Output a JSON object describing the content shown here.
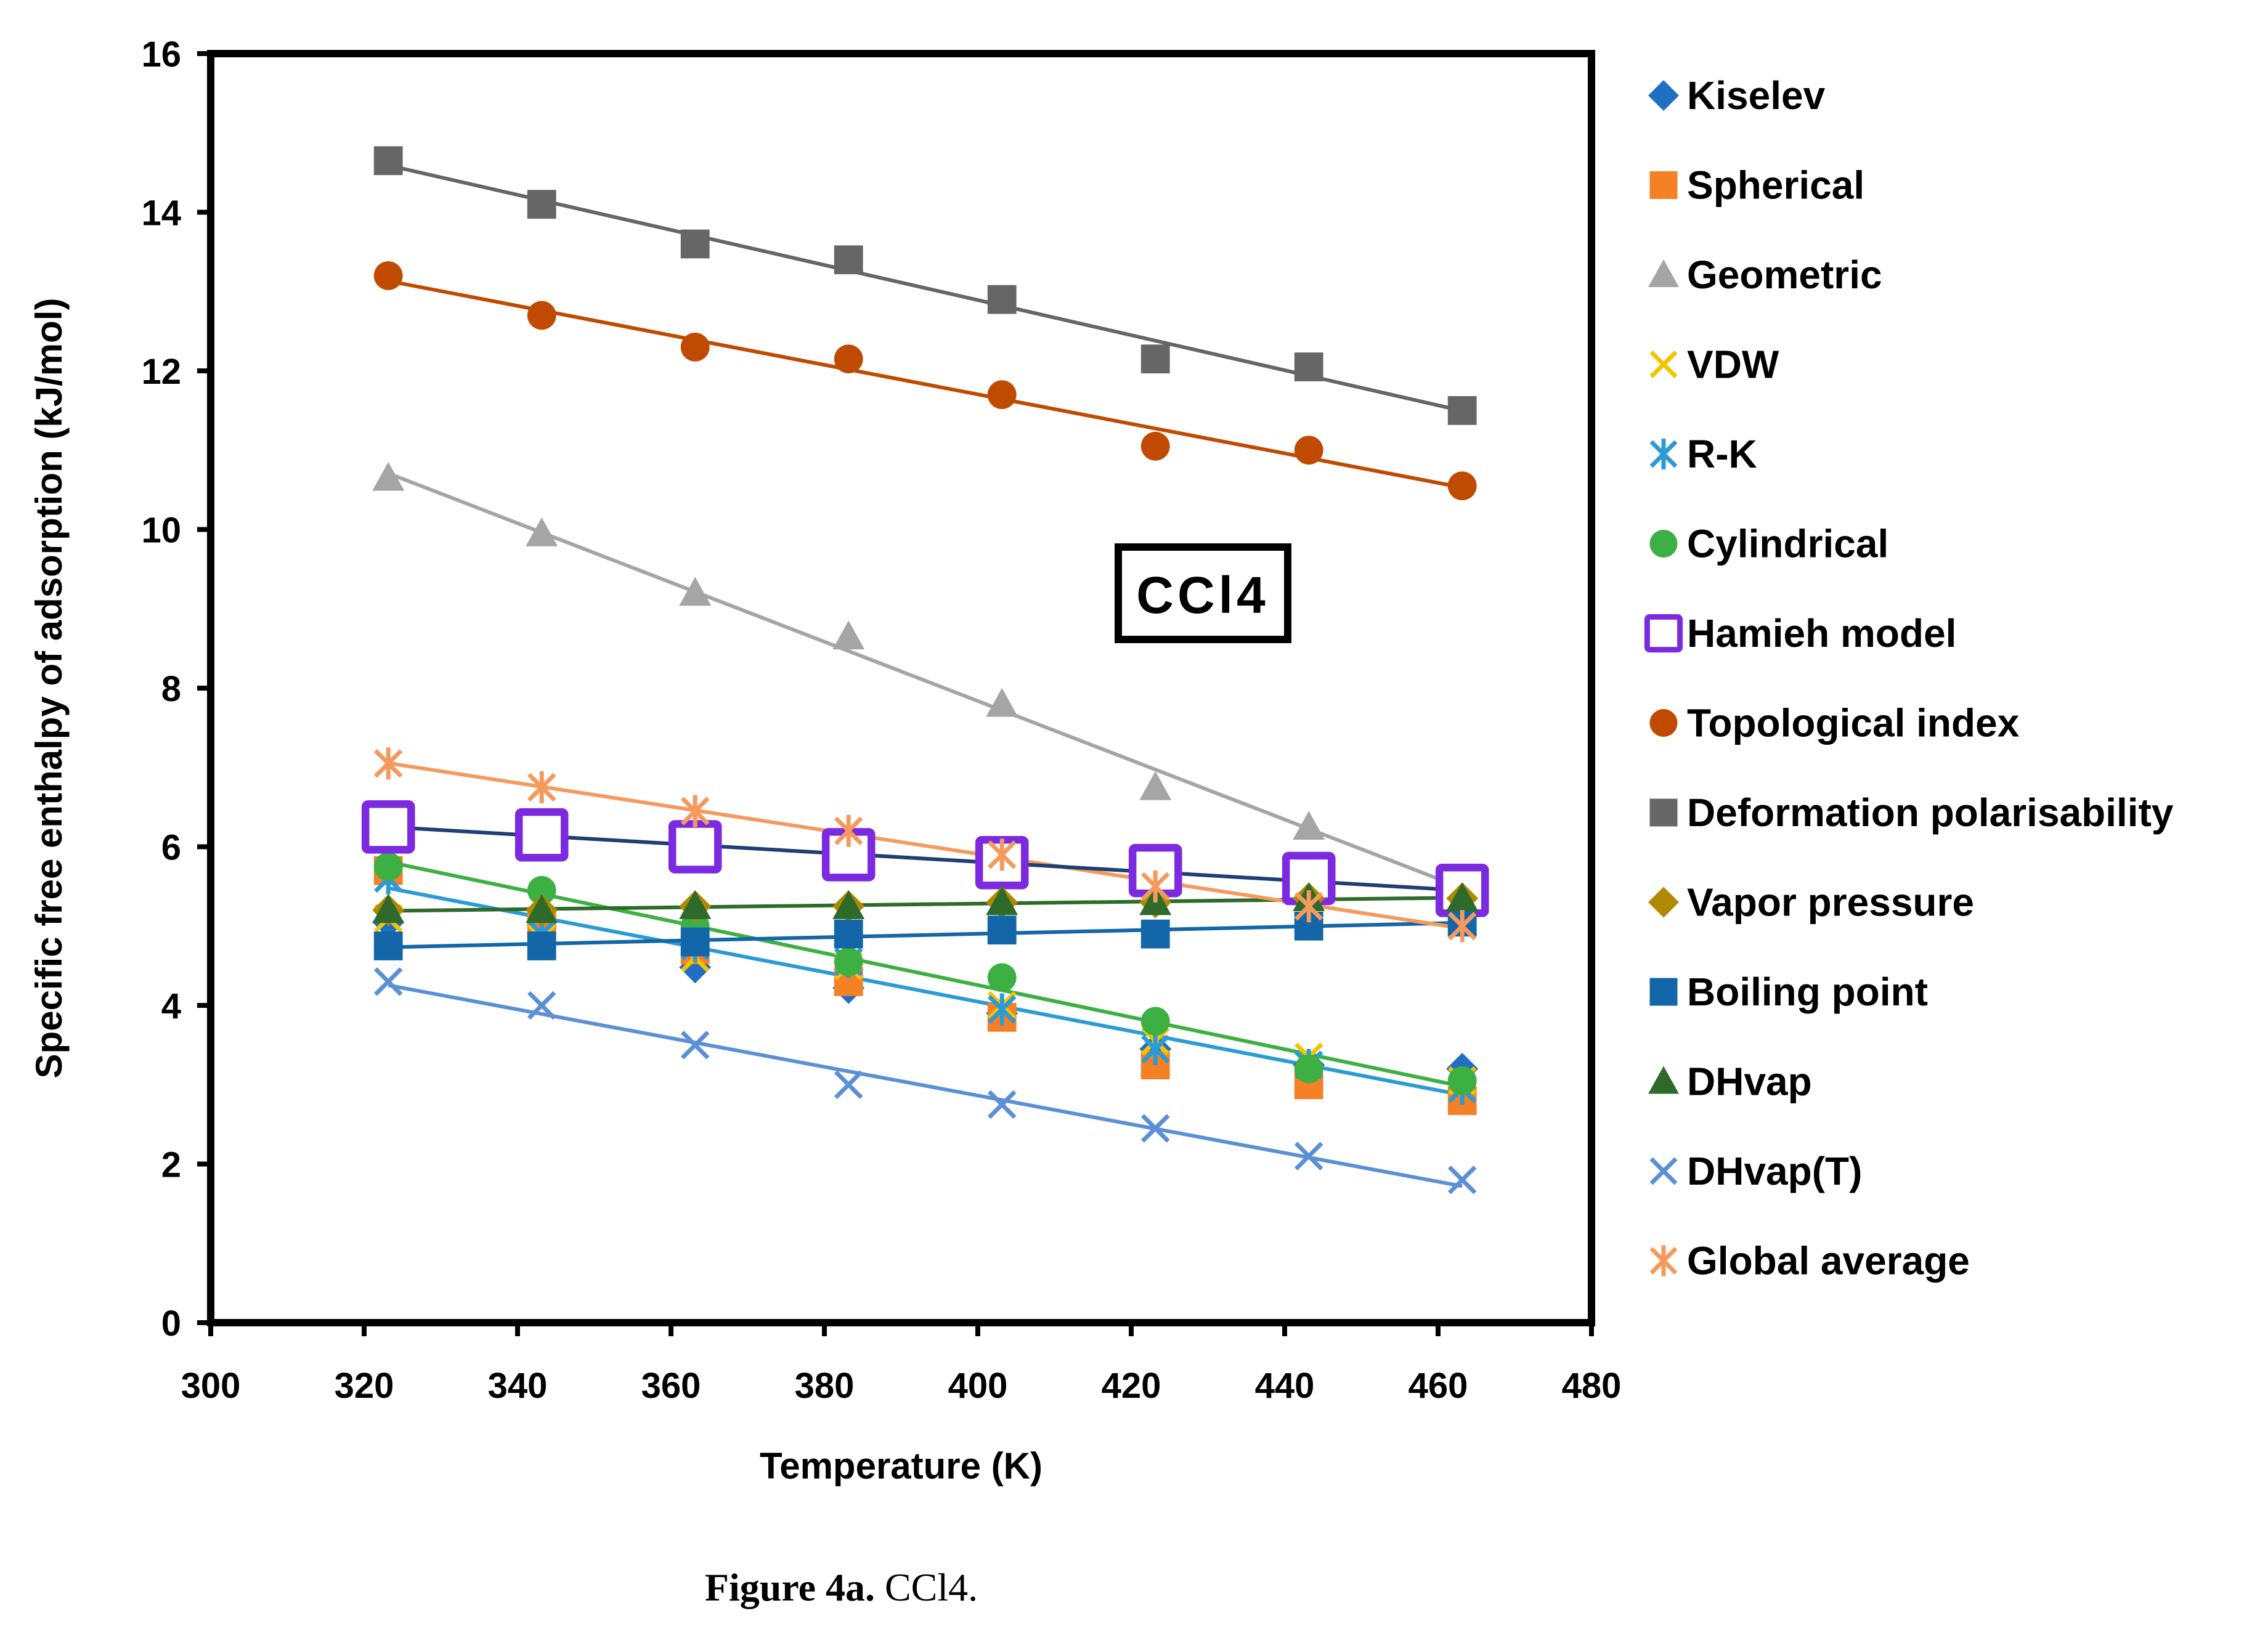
{
  "chart_data": {
    "type": "scatter",
    "title": "",
    "xlabel": "Temperature (K)",
    "ylabel": "Specific free enthalpy of adsorption (kJ/mol)",
    "xlim": [
      300,
      480
    ],
    "ylim": [
      0,
      16
    ],
    "xticks": [
      300,
      320,
      340,
      360,
      380,
      400,
      420,
      440,
      460,
      480
    ],
    "yticks": [
      0,
      2,
      4,
      6,
      8,
      10,
      12,
      14,
      16
    ],
    "annotation": "CCl4",
    "legend_position": "right",
    "x": [
      323.15,
      343.15,
      363.15,
      383.15,
      403.15,
      423.15,
      443.15,
      463.15
    ],
    "series": [
      {
        "name": "Kiselev",
        "marker": "diamond",
        "color": "#1f6fc4",
        "values": [
          5.05,
          4.78,
          4.48,
          4.22,
          3.9,
          3.45,
          3.25,
          3.2
        ],
        "trendline": false
      },
      {
        "name": "Spherical",
        "marker": "square",
        "color": "#f58025",
        "values": [
          5.7,
          5.0,
          4.7,
          4.3,
          3.85,
          3.25,
          3.0,
          2.8
        ],
        "trendline": false
      },
      {
        "name": "Geometric",
        "marker": "triangle",
        "color": "#a5a5a5",
        "values": [
          10.65,
          9.95,
          9.2,
          8.65,
          7.8,
          6.75,
          6.25,
          5.5
        ],
        "trendline": true
      },
      {
        "name": "VDW",
        "marker": "x",
        "color": "#f2c500",
        "values": [
          5.1,
          4.85,
          4.6,
          4.5,
          4.0,
          3.55,
          3.35,
          3.05
        ],
        "trendline": false
      },
      {
        "name": "R-K",
        "marker": "asterisk",
        "color": "#2a9bd6",
        "values": [
          5.6,
          4.9,
          4.75,
          4.55,
          3.95,
          3.45,
          3.25,
          2.95
        ],
        "trendline": true
      },
      {
        "name": "Cylindrical",
        "marker": "circle",
        "color": "#3cb043",
        "values": [
          5.75,
          5.45,
          5.0,
          4.55,
          4.35,
          3.8,
          3.2,
          3.05
        ],
        "trendline": true
      },
      {
        "name": "Hamieh model",
        "marker": "open-square",
        "color": "#7b2ae0",
        "values": [
          6.25,
          6.15,
          6.0,
          5.9,
          5.8,
          5.7,
          5.6,
          5.45
        ],
        "trendline": false
      },
      {
        "name": "Topological index",
        "marker": "circle",
        "color": "#c04a00",
        "values": [
          13.2,
          12.7,
          12.3,
          12.15,
          11.7,
          11.05,
          11.0,
          10.55
        ],
        "trendline": true
      },
      {
        "name": "Deformation polarisability",
        "marker": "square",
        "color": "#666666",
        "values": [
          14.65,
          14.1,
          13.6,
          13.4,
          12.9,
          12.15,
          12.05,
          11.5
        ],
        "trendline": true
      },
      {
        "name": "Vapor pressure",
        "marker": "diamond",
        "color": "#b08900",
        "values": [
          5.2,
          5.2,
          5.25,
          5.25,
          5.3,
          5.3,
          5.35,
          5.35
        ],
        "trendline": false
      },
      {
        "name": "Boiling point",
        "marker": "square",
        "color": "#1366a8",
        "values": [
          4.75,
          4.75,
          4.8,
          4.9,
          4.95,
          4.9,
          5.0,
          5.05
        ],
        "trendline": true
      },
      {
        "name": "DHvap",
        "marker": "triangle",
        "color": "#2e6b2b",
        "values": [
          5.2,
          5.2,
          5.25,
          5.25,
          5.3,
          5.3,
          5.35,
          5.35
        ],
        "trendline": true
      },
      {
        "name": "DHvap(T)",
        "marker": "x",
        "color": "#5b8fd6",
        "values": [
          4.3,
          4.0,
          3.5,
          3.0,
          2.75,
          2.45,
          2.1,
          1.8
        ],
        "trendline": true
      },
      {
        "name": "Global average",
        "marker": "asterisk",
        "color": "#f59a5c",
        "values": [
          7.05,
          6.75,
          6.45,
          6.2,
          5.9,
          5.5,
          5.25,
          5.0
        ],
        "trendline": true
      }
    ],
    "extra_lines": [
      {
        "name": "Hamieh trend",
        "color": "#1f3e74",
        "from": [
          323.15,
          6.25
        ],
        "to": [
          463.15,
          5.45
        ]
      }
    ]
  },
  "caption": {
    "label": "Figure 4a.",
    "text": "CCl4."
  }
}
